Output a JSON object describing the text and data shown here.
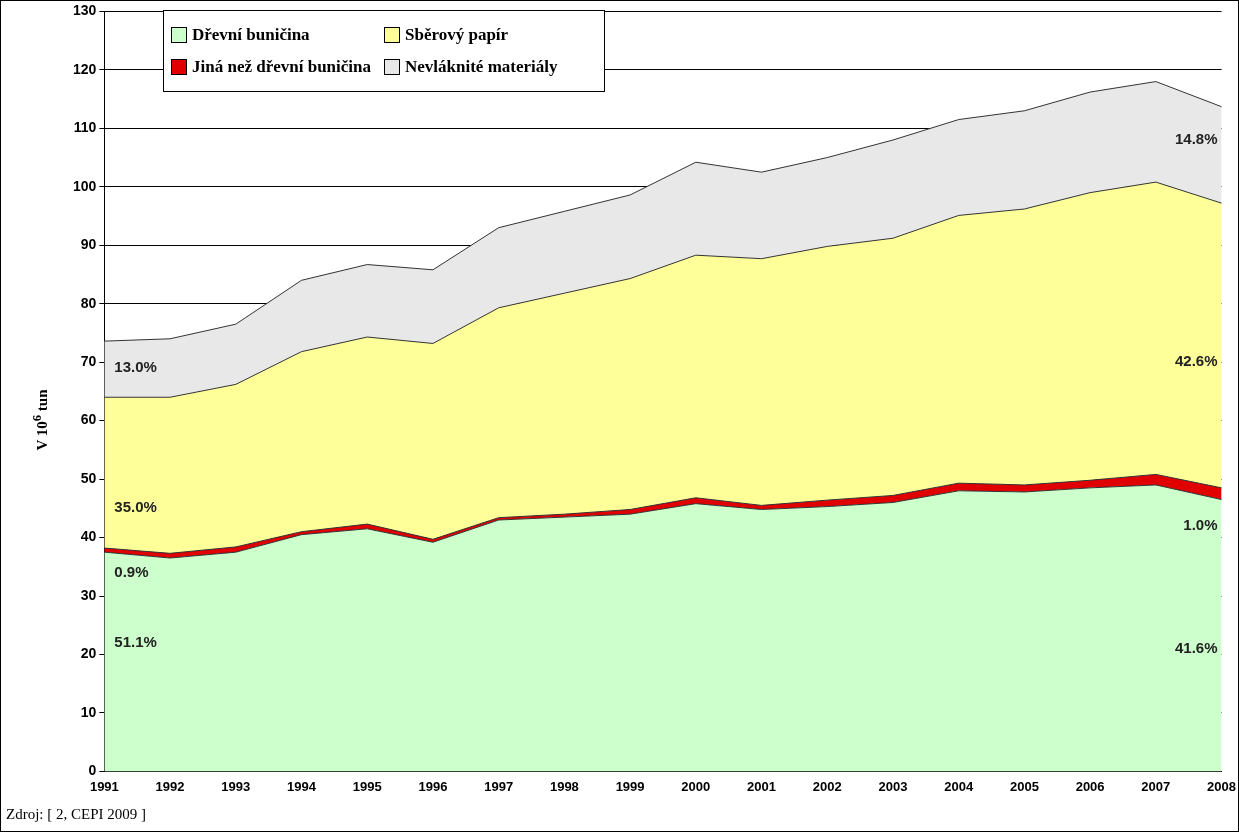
{
  "chart_data": {
    "type": "area",
    "stacked": true,
    "ylabel": "V 10$^{6}$ tun",
    "categories": [
      "1991",
      "1992",
      "1993",
      "1994",
      "1995",
      "1996",
      "1997",
      "1998",
      "1999",
      "2000",
      "2001",
      "2002",
      "2003",
      "2004",
      "2005",
      "2006",
      "2007",
      "2008"
    ],
    "series": [
      {
        "name": "Dřevní buničina",
        "color": "#ccffcc",
        "values": [
          37.5,
          36.5,
          37.5,
          40.5,
          41.5,
          39.2,
          43,
          43.5,
          44,
          45.8,
          44.8,
          45.3,
          46,
          48,
          47.8,
          48.5,
          49,
          46.5
        ]
      },
      {
        "name": "Jiná než dřevní buničina",
        "color": "#e00000",
        "values": [
          0.7,
          0.8,
          0.9,
          0.5,
          0.8,
          0.5,
          0.4,
          0.5,
          0.8,
          1.0,
          0.7,
          1.1,
          1.2,
          1.3,
          1.2,
          1.3,
          1.8,
          2.0
        ]
      },
      {
        "name": "Sběrový papír",
        "color": "#ffff99",
        "values": [
          25.8,
          26.7,
          27.8,
          30.8,
          32,
          33.5,
          35.9,
          37.8,
          39.5,
          41.5,
          42.2,
          43.4,
          44,
          45.8,
          47.2,
          49.2,
          50,
          48.7
        ]
      },
      {
        "name": "Nevláknité materiály",
        "color": "#e8e8e8",
        "values": [
          9.6,
          10,
          10.3,
          12.2,
          12.4,
          12.6,
          13.7,
          14,
          14.3,
          15.9,
          14.8,
          15.2,
          16.8,
          16.4,
          16.8,
          17.2,
          17.2,
          16.5
        ]
      }
    ],
    "ylim": [
      0,
      130
    ],
    "yticks": [
      0,
      10,
      20,
      30,
      40,
      50,
      60,
      70,
      80,
      90,
      100,
      110,
      120,
      130
    ],
    "grid": "y",
    "legend": "top left",
    "annotations": [
      {
        "text": "13.0%",
        "x": "1991",
        "y": 69
      },
      {
        "text": "35.0%",
        "x": "1991",
        "y": 45
      },
      {
        "text": "0.9%",
        "x": "1991",
        "y": 34
      },
      {
        "text": "51.1%",
        "x": "1991",
        "y": 22
      },
      {
        "text": "14.8%",
        "x": "2008",
        "y": 108
      },
      {
        "text": "42.6%",
        "x": "2008",
        "y": 70
      },
      {
        "text": "1.0%",
        "x": "2008",
        "y": 42
      },
      {
        "text": "41.6%",
        "x": "2008",
        "y": 21
      },
      "Zdroj: [ 2, CEPI 2009 ]"
    ]
  }
}
